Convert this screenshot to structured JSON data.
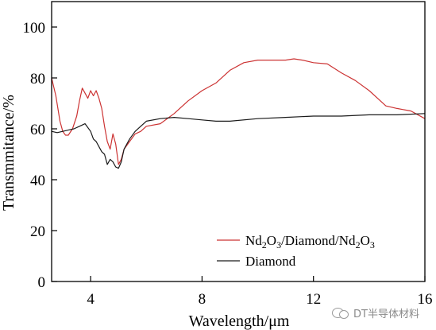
{
  "chart_data": {
    "type": "line",
    "title": "",
    "xlabel": "Wavelength/μm",
    "ylabel": "Transmmitance/%",
    "xlim": [
      2.6,
      16
    ],
    "ylim": [
      0,
      110
    ],
    "xticks": [
      4,
      8,
      12,
      16
    ],
    "yticks": [
      0,
      20,
      40,
      60,
      80,
      100
    ],
    "legend_position": "bottom-right",
    "series": [
      {
        "name": "Nd2O3/Diamond/Nd2O3",
        "color": "#cc3333",
        "x": [
          2.6,
          2.75,
          2.9,
          3.0,
          3.1,
          3.2,
          3.35,
          3.5,
          3.6,
          3.7,
          3.8,
          3.9,
          4.0,
          4.1,
          4.2,
          4.3,
          4.4,
          4.5,
          4.6,
          4.7,
          4.8,
          4.9,
          5.0,
          5.1,
          5.2,
          5.4,
          5.6,
          5.8,
          6.0,
          6.5,
          7.0,
          7.5,
          8.0,
          8.5,
          9.0,
          9.5,
          10.0,
          10.5,
          11.0,
          11.3,
          11.6,
          12.0,
          12.5,
          13.0,
          13.5,
          14.0,
          14.3,
          14.6,
          15.0,
          15.5,
          16.0
        ],
        "values": [
          80,
          73,
          63,
          59,
          57.5,
          57.5,
          60,
          65,
          71,
          76,
          74,
          72,
          75,
          73,
          75,
          72,
          68,
          61,
          55,
          52,
          58,
          54,
          46,
          48,
          52,
          55,
          58,
          59,
          61,
          62,
          66,
          71,
          75,
          78,
          83,
          86,
          87,
          87,
          87,
          87.5,
          87,
          86,
          85.5,
          82,
          79,
          75,
          72,
          69,
          68,
          67,
          64
        ]
      },
      {
        "name": "Diamond",
        "color": "#1a1a1a",
        "x": [
          2.6,
          2.8,
          3.0,
          3.2,
          3.4,
          3.6,
          3.8,
          4.0,
          4.1,
          4.2,
          4.3,
          4.4,
          4.5,
          4.6,
          4.7,
          4.8,
          4.9,
          5.0,
          5.1,
          5.2,
          5.4,
          5.6,
          5.8,
          6.0,
          6.5,
          7.0,
          7.5,
          8.0,
          8.5,
          9.0,
          10.0,
          11.0,
          12.0,
          13.0,
          14.0,
          15.0,
          16.0
        ],
        "values": [
          59,
          58.5,
          59,
          59.5,
          60,
          61,
          62,
          59,
          56,
          55,
          53,
          51,
          50,
          46,
          48,
          47,
          45,
          44.5,
          47,
          52,
          56,
          59,
          61,
          63,
          64,
          64.5,
          64,
          63.5,
          63,
          63,
          64,
          64.5,
          65,
          65,
          65.5,
          65.5,
          66
        ]
      }
    ]
  },
  "legend": {
    "items": [
      {
        "base1": "Nd",
        "sub1": "2",
        "base2": "O",
        "sub2": "3",
        "base3": "/Diamond/Nd",
        "sub3": "2",
        "base4": "O",
        "sub4": "3"
      },
      {
        "label": "Diamond"
      }
    ]
  },
  "watermark": {
    "text": "DT半导体材料"
  }
}
